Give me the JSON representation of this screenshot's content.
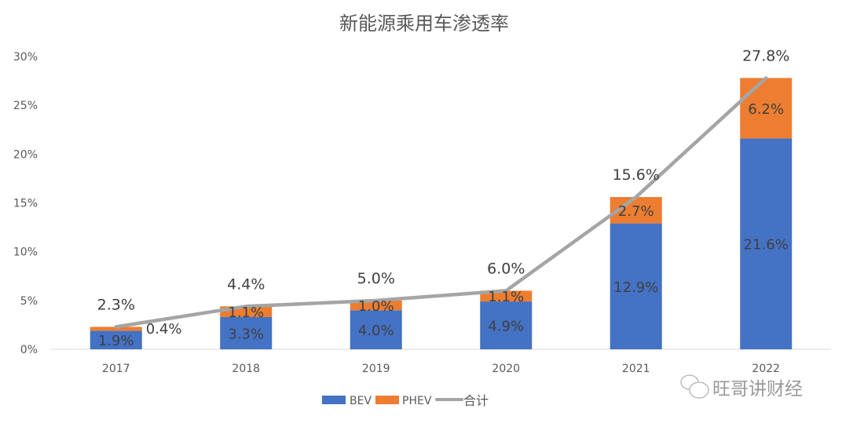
{
  "chart_data": {
    "type": "bar",
    "stacked": true,
    "title": "新能源乘用车渗透率",
    "categories": [
      "2017",
      "2018",
      "2019",
      "2020",
      "2021",
      "2022"
    ],
    "series": [
      {
        "name": "BEV",
        "type": "bar",
        "color": "#4472C4",
        "values": [
          1.9,
          3.3,
          4.0,
          4.9,
          12.9,
          21.6
        ],
        "labels": [
          "1.9%",
          "3.3%",
          "4.0%",
          "4.9%",
          "12.9%",
          "21.6%"
        ]
      },
      {
        "name": "PHEV",
        "type": "bar",
        "color": "#ED7D31",
        "values": [
          0.4,
          1.1,
          1.0,
          1.1,
          2.7,
          6.2
        ],
        "labels": [
          "0.4%",
          "1.1%",
          "1.0%",
          "1.1%",
          "2.7%",
          "6.2%"
        ]
      },
      {
        "name": "合计",
        "type": "line",
        "color": "#A5A5A5",
        "values": [
          2.3,
          4.4,
          5.0,
          6.0,
          15.6,
          27.8
        ],
        "labels": [
          "2.3%",
          "4.4%",
          "5.0%",
          "6.0%",
          "15.6%",
          "27.8%"
        ]
      }
    ],
    "ylim": [
      0,
      30
    ],
    "yticks": [
      "0%",
      "5%",
      "10%",
      "15%",
      "20%",
      "25%",
      "30%"
    ],
    "grid": false,
    "legend": "bottom"
  },
  "watermark": "旺哥讲财经"
}
